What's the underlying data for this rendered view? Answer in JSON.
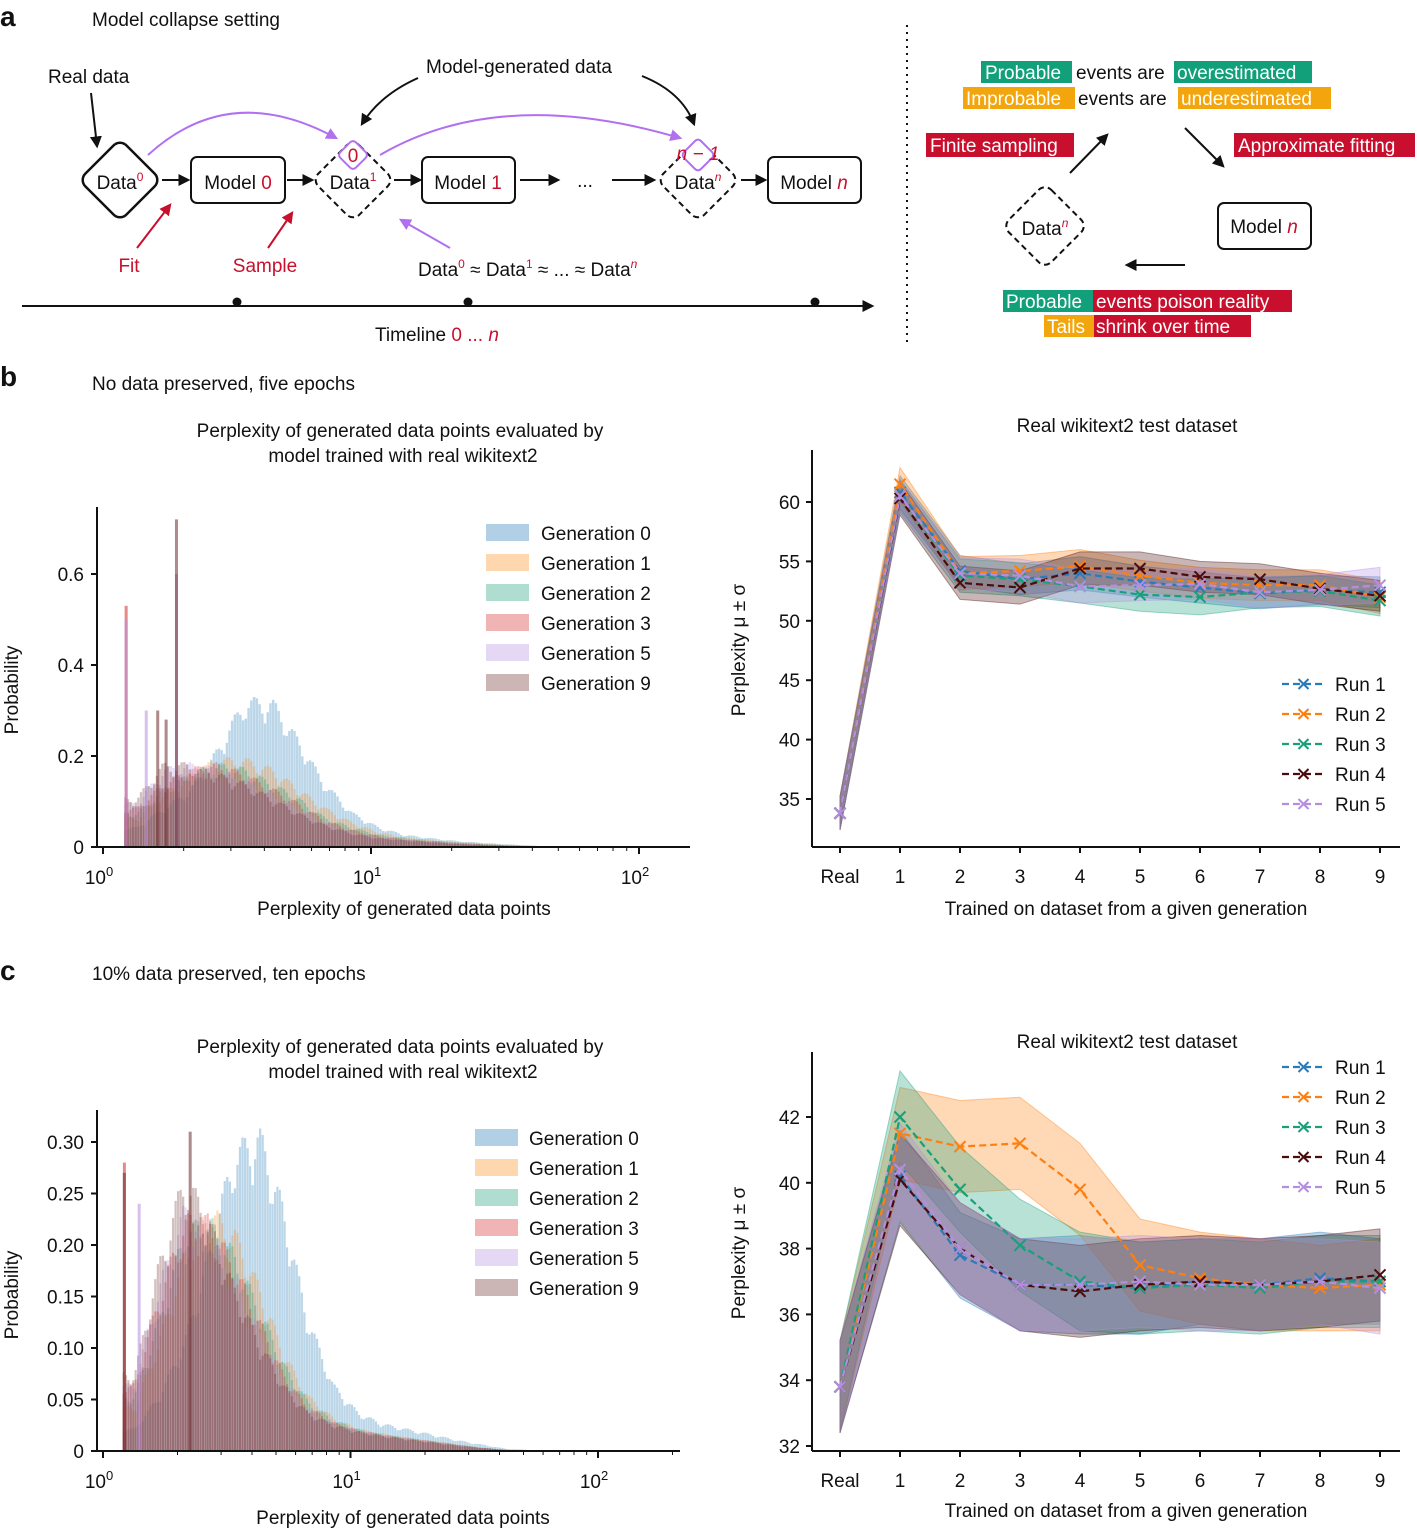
{
  "panel_a": {
    "letter": "a",
    "title": "Model collapse setting",
    "real_data": "Real data",
    "model_generated_data": "Model-generated data",
    "data0": {
      "text": "Data",
      "sup": "0"
    },
    "data1": {
      "text": "Data",
      "sup": "1"
    },
    "datan": {
      "text": "Data",
      "sup": "n"
    },
    "model0": {
      "text": "Model ",
      "num": "0"
    },
    "model1": {
      "text": "Model ",
      "num": "1"
    },
    "modeln": {
      "text": "Model ",
      "num": "n"
    },
    "small_diamond_1": "0",
    "small_diamond_n": "n − 1",
    "ellipsis": "...",
    "fit": "Fit",
    "sample": "Sample",
    "approx_chain": {
      "d": "Data",
      "approx": " ≈ ",
      "dots": " ... ",
      "s0": "0",
      "s1": "1",
      "sn": "n"
    },
    "timeline": {
      "label": "Timeline ",
      "range_start": "0",
      "range_dots": " ... ",
      "range_end": "n"
    },
    "right": {
      "probable": "Probable",
      "events_are": "events are",
      "overestimated": "overestimated",
      "improbable": "Improbable",
      "underestimated": "underestimated",
      "finite_sampling": "Finite sampling",
      "approximate_fitting": "Approximate fitting",
      "datan": {
        "text": "Data",
        "sup": "n"
      },
      "modeln": {
        "text": "Model ",
        "num": "n"
      },
      "events_poison_reality": "events poison reality",
      "tails": "Tails",
      "shrink_over_time": "shrink over time"
    },
    "colors": {
      "green": "#12a07a",
      "orange": "#f2a50c",
      "red": "#c8102e",
      "purple": "#b070f0"
    }
  },
  "panel_b": {
    "letter": "b",
    "title": "No data preserved, five epochs"
  },
  "panel_c": {
    "letter": "c",
    "title": "10% data preserved, ten epochs"
  },
  "chart_data": [
    {
      "type": "bar",
      "subtype": "histogram-overlay",
      "title": [
        "Perplexity of generated data points evaluated by",
        "model trained with real wikitext2"
      ],
      "xlabel": "Perplexity of generated data points",
      "ylabel": "Probability",
      "xscale": "log",
      "xlim": [
        1,
        160
      ],
      "ylim": [
        0,
        0.75
      ],
      "xticks": [
        {
          "base": "10",
          "exp": "0"
        },
        {
          "base": "10",
          "exp": "1"
        },
        {
          "base": "10",
          "exp": "2"
        }
      ],
      "yticks": [
        0,
        0.2,
        0.4,
        0.6
      ],
      "ytick_labels": [
        "0",
        "0.2",
        "0.4",
        "0.6"
      ],
      "legend": "top-right",
      "bin_edges": [
        1.2,
        1.5,
        1.9,
        2.4,
        3.0,
        3.8,
        4.8,
        6.0,
        7.6,
        9.6,
        12,
        15,
        19,
        24,
        30,
        38,
        48,
        60
      ],
      "series": [
        {
          "name": "Generation 0",
          "color": "#1f77b4",
          "values": [
            0.04,
            0.08,
            0.12,
            0.2,
            0.3,
            0.3,
            0.22,
            0.13,
            0.07,
            0.04,
            0.025,
            0.018,
            0.012,
            0.008,
            0.005,
            0.002,
            0.001
          ]
        },
        {
          "name": "Generation 1",
          "color": "#ff8c1a",
          "values": [
            0.06,
            0.11,
            0.15,
            0.18,
            0.18,
            0.16,
            0.12,
            0.08,
            0.05,
            0.03,
            0.02,
            0.015,
            0.01,
            0.007,
            0.004,
            0.002,
            0.001
          ]
        },
        {
          "name": "Generation 2",
          "color": "#1b9e77",
          "values": [
            0.07,
            0.12,
            0.15,
            0.17,
            0.16,
            0.13,
            0.1,
            0.06,
            0.04,
            0.025,
            0.018,
            0.013,
            0.009,
            0.006,
            0.003,
            0.002,
            0.001
          ]
        },
        {
          "name": "Generation 3",
          "color": "#d62728",
          "values": [
            0.08,
            0.13,
            0.16,
            0.17,
            0.15,
            0.12,
            0.09,
            0.055,
            0.035,
            0.022,
            0.016,
            0.012,
            0.008,
            0.005,
            0.003,
            0.001,
            0.0005
          ]
        },
        {
          "name": "Generation 5",
          "color": "#b48ee0",
          "values": [
            0.09,
            0.16,
            0.17,
            0.16,
            0.14,
            0.11,
            0.08,
            0.05,
            0.03,
            0.02,
            0.015,
            0.011,
            0.007,
            0.004,
            0.002,
            0.001,
            0.0005
          ]
        },
        {
          "name": "Generation 9",
          "color": "#6b2a2a",
          "values": [
            0.1,
            0.17,
            0.17,
            0.15,
            0.13,
            0.1,
            0.07,
            0.045,
            0.028,
            0.018,
            0.014,
            0.01,
            0.006,
            0.004,
            0.002,
            0.001,
            0.0005
          ]
        }
      ],
      "spikes": [
        {
          "series": 3,
          "x": 1.22,
          "y": 0.53
        },
        {
          "series": 4,
          "x": 1.22,
          "y": 0.5
        },
        {
          "series": 4,
          "x": 1.45,
          "y": 0.3
        },
        {
          "series": 5,
          "x": 1.6,
          "y": 0.3
        },
        {
          "series": 5,
          "x": 1.72,
          "y": 0.28
        },
        {
          "series": 4,
          "x": 1.88,
          "y": 0.6
        },
        {
          "series": 5,
          "x": 1.88,
          "y": 0.72
        }
      ]
    },
    {
      "type": "line",
      "title": "Real wikitext2 test dataset",
      "xlabel": "Trained on dataset from a given generation",
      "ylabel": "Perplexity μ ± σ",
      "categories": [
        "Real",
        "1",
        "2",
        "3",
        "4",
        "5",
        "6",
        "7",
        "8",
        "9"
      ],
      "ylim": [
        32.5,
        64
      ],
      "yticks": [
        35,
        40,
        45,
        50,
        55,
        60
      ],
      "legend": "lower-right",
      "series": [
        {
          "name": "Run 1",
          "color": "#2b7bb9",
          "values": [
            33.8,
            60.8,
            54.2,
            53.5,
            54.0,
            53.3,
            52.8,
            52.3,
            52.6,
            52.4
          ],
          "std": [
            1.4,
            1.4,
            1.3,
            1.3,
            1.4,
            1.3,
            1.3,
            1.3,
            1.2,
            1.3
          ]
        },
        {
          "name": "Run 2",
          "color": "#ff7f0e",
          "values": [
            33.8,
            61.5,
            54.0,
            54.2,
            54.6,
            53.8,
            53.2,
            53.0,
            53.0,
            52.0
          ],
          "std": [
            1.4,
            1.4,
            1.4,
            1.3,
            1.4,
            1.3,
            1.3,
            1.3,
            1.3,
            1.4
          ]
        },
        {
          "name": "Run 3",
          "color": "#17a07a",
          "values": [
            33.8,
            60.5,
            53.8,
            53.5,
            52.9,
            52.2,
            52.0,
            52.4,
            52.5,
            51.7
          ],
          "std": [
            1.4,
            1.4,
            1.4,
            1.4,
            1.4,
            1.4,
            1.5,
            1.3,
            1.3,
            1.3
          ]
        },
        {
          "name": "Run 4",
          "color": "#4a0c0c",
          "values": [
            33.8,
            60.3,
            53.2,
            52.8,
            54.4,
            54.4,
            53.7,
            53.5,
            52.7,
            52.1
          ],
          "std": [
            1.4,
            1.4,
            1.4,
            1.4,
            1.4,
            1.4,
            1.3,
            1.3,
            1.3,
            1.3
          ]
        },
        {
          "name": "Run 5",
          "color": "#b48ee0",
          "values": [
            33.8,
            60.5,
            54.0,
            53.8,
            52.9,
            53.0,
            53.1,
            52.4,
            52.6,
            53.0
          ],
          "std": [
            1.4,
            1.4,
            1.3,
            1.4,
            1.4,
            1.3,
            1.3,
            1.3,
            1.3,
            1.5
          ]
        }
      ]
    },
    {
      "type": "bar",
      "subtype": "histogram-overlay",
      "title": [
        "Perplexity of generated data points evaluated by",
        "model trained with real wikitext2"
      ],
      "xlabel": "Perplexity of generated data points",
      "ylabel": "Probability",
      "xscale": "log",
      "xlim": [
        1,
        160
      ],
      "ylim": [
        0,
        0.33
      ],
      "xticks": [
        {
          "base": "10",
          "exp": "0"
        },
        {
          "base": "10",
          "exp": "1"
        },
        {
          "base": "10",
          "exp": "2"
        }
      ],
      "yticks": [
        0,
        0.05,
        0.1,
        0.15,
        0.2,
        0.25,
        0.3
      ],
      "ytick_labels": [
        "0",
        "0.05",
        "0.10",
        "0.15",
        "0.20",
        "0.25",
        "0.30"
      ],
      "legend": "top-right",
      "bin_edges": [
        1.2,
        1.5,
        1.9,
        2.4,
        3.0,
        3.8,
        4.8,
        6.0,
        7.6,
        9.6,
        12,
        15,
        19,
        24,
        30,
        38,
        48,
        60
      ],
      "series": [
        {
          "name": "Generation 0",
          "color": "#1f77b4",
          "values": [
            0.02,
            0.05,
            0.1,
            0.18,
            0.27,
            0.29,
            0.22,
            0.12,
            0.06,
            0.035,
            0.025,
            0.02,
            0.015,
            0.01,
            0.006,
            0.002,
            0.001
          ]
        },
        {
          "name": "Generation 1",
          "color": "#ff8c1a",
          "values": [
            0.04,
            0.1,
            0.18,
            0.22,
            0.2,
            0.15,
            0.09,
            0.05,
            0.03,
            0.02,
            0.016,
            0.012,
            0.009,
            0.006,
            0.003,
            0.001,
            0.0005
          ]
        },
        {
          "name": "Generation 2",
          "color": "#1b9e77",
          "values": [
            0.05,
            0.12,
            0.2,
            0.21,
            0.18,
            0.13,
            0.08,
            0.045,
            0.028,
            0.02,
            0.015,
            0.012,
            0.009,
            0.006,
            0.003,
            0.001,
            0.0005
          ]
        },
        {
          "name": "Generation 3",
          "color": "#d62728",
          "values": [
            0.06,
            0.14,
            0.21,
            0.21,
            0.17,
            0.12,
            0.07,
            0.04,
            0.026,
            0.019,
            0.015,
            0.012,
            0.009,
            0.006,
            0.003,
            0.001,
            0.0005
          ]
        },
        {
          "name": "Generation 5",
          "color": "#b48ee0",
          "values": [
            0.06,
            0.15,
            0.22,
            0.2,
            0.16,
            0.11,
            0.065,
            0.038,
            0.025,
            0.018,
            0.014,
            0.011,
            0.008,
            0.005,
            0.003,
            0.001,
            0.0005
          ]
        },
        {
          "name": "Generation 9",
          "color": "#6b2a2a",
          "values": [
            0.07,
            0.17,
            0.25,
            0.21,
            0.15,
            0.1,
            0.06,
            0.035,
            0.024,
            0.018,
            0.014,
            0.011,
            0.008,
            0.005,
            0.003,
            0.001,
            0.0005
          ]
        }
      ],
      "spikes": [
        {
          "series": 3,
          "x": 1.22,
          "y": 0.28
        },
        {
          "series": 5,
          "x": 1.22,
          "y": 0.27
        },
        {
          "series": 4,
          "x": 1.4,
          "y": 0.24
        },
        {
          "series": 5,
          "x": 2.25,
          "y": 0.31
        }
      ]
    },
    {
      "type": "line",
      "title": "Real wikitext2 test dataset",
      "xlabel": "Trained on dataset from a given generation",
      "ylabel": "Perplexity μ ± σ",
      "categories": [
        "Real",
        "1",
        "2",
        "3",
        "4",
        "5",
        "6",
        "7",
        "8",
        "9"
      ],
      "ylim": [
        32,
        43.8
      ],
      "yticks": [
        32,
        34,
        36,
        38,
        40,
        42
      ],
      "legend": "top-right",
      "series": [
        {
          "name": "Run 1",
          "color": "#2b7bb9",
          "values": [
            33.8,
            40.2,
            37.8,
            36.9,
            36.9,
            36.8,
            37.0,
            36.9,
            37.1,
            37.0
          ],
          "std": [
            1.4,
            1.4,
            1.3,
            1.4,
            1.5,
            1.4,
            1.3,
            1.4,
            1.4,
            1.3
          ]
        },
        {
          "name": "Run 2",
          "color": "#ff7f0e",
          "values": [
            33.8,
            41.5,
            41.1,
            41.2,
            39.8,
            37.5,
            37.1,
            36.9,
            36.8,
            36.9
          ],
          "std": [
            1.4,
            1.4,
            1.4,
            1.4,
            1.4,
            1.4,
            1.4,
            1.4,
            1.3,
            1.4
          ]
        },
        {
          "name": "Run 3",
          "color": "#17a07a",
          "values": [
            33.8,
            42.0,
            39.8,
            38.1,
            37.0,
            36.8,
            36.9,
            36.8,
            37.0,
            37.0
          ],
          "std": [
            1.4,
            1.4,
            1.3,
            1.4,
            1.5,
            1.4,
            1.4,
            1.4,
            1.4,
            1.4
          ]
        },
        {
          "name": "Run 4",
          "color": "#4a0c0c",
          "values": [
            33.8,
            40.1,
            38.0,
            36.9,
            36.7,
            36.9,
            37.0,
            36.9,
            37.0,
            37.2
          ],
          "std": [
            1.4,
            1.4,
            1.4,
            1.4,
            1.4,
            1.4,
            1.4,
            1.4,
            1.4,
            1.4
          ]
        },
        {
          "name": "Run 5",
          "color": "#b48ee0",
          "values": [
            33.8,
            40.4,
            38.0,
            36.9,
            36.9,
            37.0,
            36.9,
            36.9,
            37.0,
            36.8
          ],
          "std": [
            1.4,
            1.4,
            1.4,
            1.4,
            1.4,
            1.4,
            1.4,
            1.4,
            1.3,
            1.4
          ]
        }
      ]
    }
  ]
}
